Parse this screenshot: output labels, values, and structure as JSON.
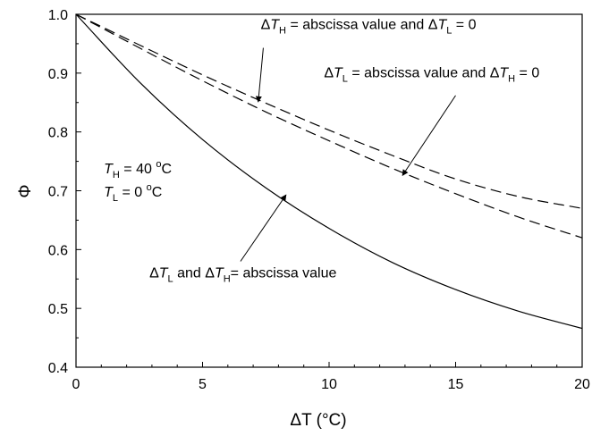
{
  "chart_data": {
    "type": "line",
    "xlabel": "ΔT (°C)",
    "ylabel": "Φ",
    "xlim": [
      0,
      20
    ],
    "ylim": [
      0.4,
      1.0
    ],
    "x_ticks": [
      0,
      5,
      10,
      15,
      20
    ],
    "y_ticks": [
      0.4,
      0.5,
      0.6,
      0.7,
      0.8,
      0.9,
      1.0
    ],
    "x_tick_labels": [
      "0",
      "5",
      "10",
      "15",
      "20"
    ],
    "y_tick_labels": [
      "0.4",
      "0.5",
      "0.6",
      "0.7",
      "0.8",
      "0.9",
      "1.0"
    ],
    "grid": false,
    "x": [
      0,
      2.5,
      5,
      7.5,
      10,
      12.5,
      15,
      17.5,
      20
    ],
    "series": [
      {
        "label": "ΔTH = abscissa value and ΔTL = 0",
        "style": "dashed",
        "values": [
          1.0,
          0.948,
          0.897,
          0.849,
          0.803,
          0.76,
          0.72,
          0.69,
          0.67
        ]
      },
      {
        "label": "ΔTL = abscissa value and ΔTH = 0",
        "style": "dashed",
        "values": [
          1.0,
          0.943,
          0.887,
          0.834,
          0.785,
          0.738,
          0.695,
          0.655,
          0.62
        ]
      },
      {
        "label": "ΔTL and ΔTH= abscissa value",
        "style": "solid",
        "values": [
          1.0,
          0.885,
          0.787,
          0.705,
          0.636,
          0.578,
          0.532,
          0.495,
          0.466
        ]
      }
    ],
    "annotations": [
      {
        "id": "label-high",
        "parts": [
          {
            "t": "Δ"
          },
          {
            "t": "T",
            "italic": true
          },
          {
            "t": "H",
            "sub": true
          },
          {
            "t": " = abscissa value and Δ"
          },
          {
            "t": "T",
            "italic": true
          },
          {
            "t": "L",
            "sub": true
          },
          {
            "t": " = 0"
          }
        ],
        "text_at": [
          7.3,
          0.975
        ],
        "arrow_from": [
          7.4,
          0.943
        ],
        "arrow_to": [
          7.2,
          0.851
        ]
      },
      {
        "id": "label-low",
        "parts": [
          {
            "t": "Δ"
          },
          {
            "t": "T",
            "italic": true
          },
          {
            "t": "L",
            "sub": true
          },
          {
            "t": " = abscissa value and Δ"
          },
          {
            "t": "T",
            "italic": true
          },
          {
            "t": "H",
            "sub": true
          },
          {
            "t": " = 0"
          }
        ],
        "text_at": [
          9.8,
          0.893
        ],
        "arrow_from": [
          15.0,
          0.862
        ],
        "arrow_to": [
          12.9,
          0.726
        ]
      },
      {
        "id": "label-both",
        "parts": [
          {
            "t": "Δ"
          },
          {
            "t": "T",
            "italic": true
          },
          {
            "t": "L",
            "sub": true
          },
          {
            "t": " and Δ"
          },
          {
            "t": "T",
            "italic": true
          },
          {
            "t": "H",
            "sub": true
          },
          {
            "t": "= abscissa value"
          }
        ],
        "text_at": [
          2.9,
          0.553
        ],
        "arrow_from": [
          6.5,
          0.58
        ],
        "arrow_to": [
          8.3,
          0.693
        ]
      },
      {
        "id": "cond-th",
        "parts": [
          {
            "t": "T",
            "italic": true
          },
          {
            "t": "H",
            "sub": true
          },
          {
            "t": " = 40 "
          },
          {
            "t": "o",
            "sup": true
          },
          {
            "t": "C"
          }
        ],
        "text_at": [
          1.1,
          0.73
        ]
      },
      {
        "id": "cond-tl",
        "parts": [
          {
            "t": "T",
            "italic": true
          },
          {
            "t": "L",
            "sub": true
          },
          {
            "t": " = 0 "
          },
          {
            "t": "o",
            "sup": true
          },
          {
            "t": "C"
          }
        ],
        "text_at": [
          1.1,
          0.69
        ]
      }
    ]
  }
}
